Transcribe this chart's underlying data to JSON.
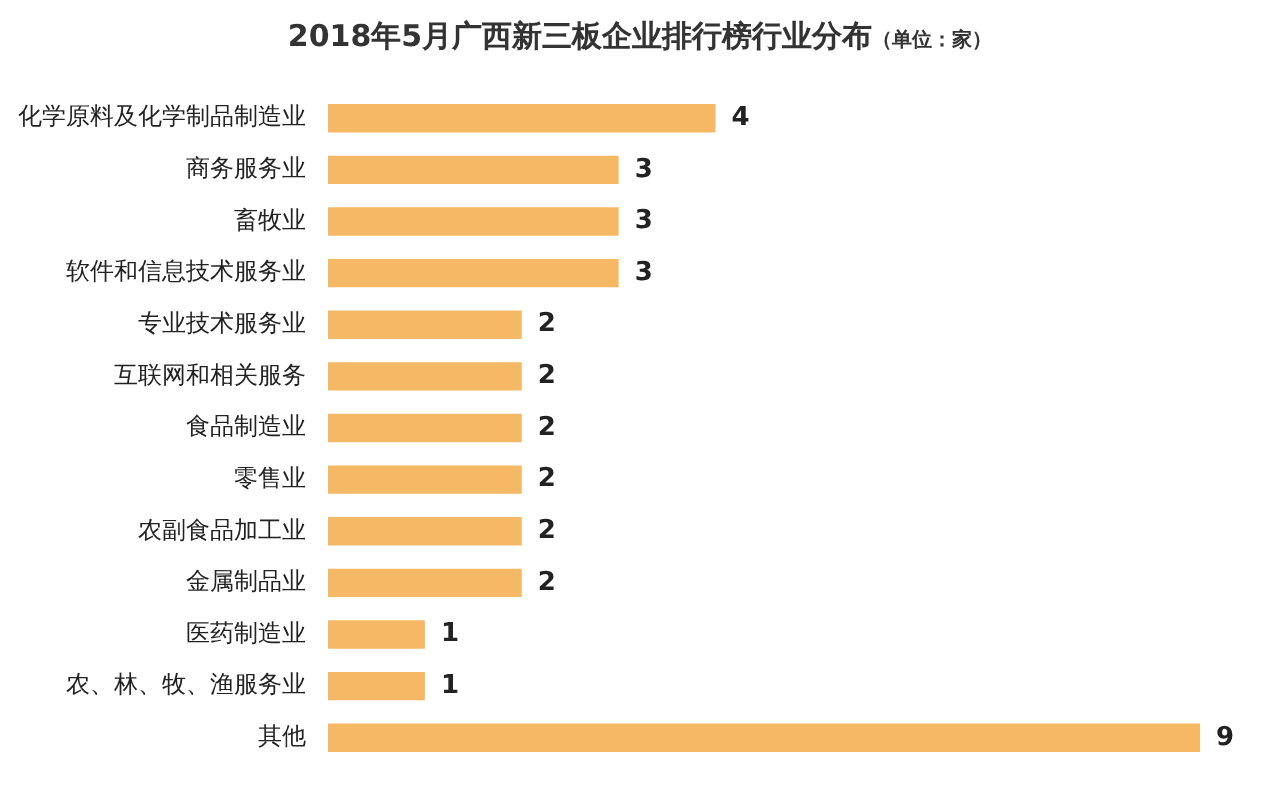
{
  "chart_data": {
    "type": "bar",
    "orientation": "horizontal",
    "title": "2018年5月广西新三板企业排行榜行业分布",
    "subtitle": "（单位：家）",
    "categories": [
      "化学原料及化学制品制造业",
      "商务服务业",
      "畜牧业",
      "软件和信息技术服务业",
      "专业技术服务业",
      "互联网和相关服务",
      "食品制造业",
      "零售业",
      "农副食品加工业",
      "金属制品业",
      "医药制造业",
      "农、林、牧、渔服务业",
      "其他"
    ],
    "values": [
      4,
      3,
      3,
      3,
      2,
      2,
      2,
      2,
      2,
      2,
      1,
      1,
      9
    ],
    "color": "#f5b865",
    "data_labels": true,
    "legend": false
  }
}
